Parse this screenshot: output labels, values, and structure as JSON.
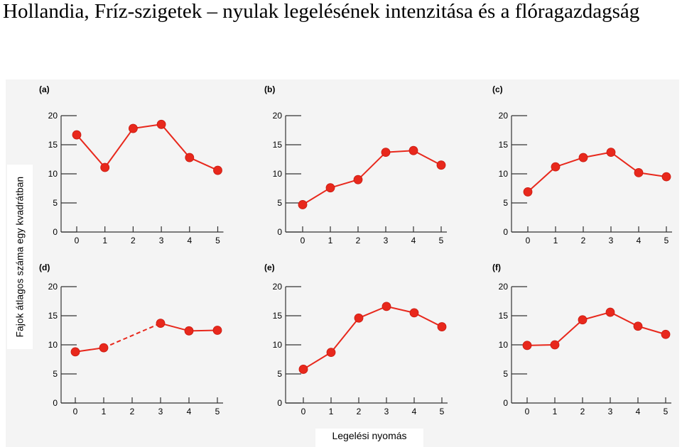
{
  "title": "Hollandia, Fríz-szigetek – nyulak legelésének intenzitása és a flóragazdagság",
  "ylabel": "Fajok átlagos száma egy kvadrátban",
  "xlabel": "Legelési nyomás",
  "colors": {
    "series": "#e8281c",
    "axis": "#333333",
    "panel_bg": "#f4f4f4"
  },
  "chart_data": [
    {
      "type": "line",
      "panel": "(a)",
      "x": [
        0,
        1,
        2,
        3,
        4,
        5
      ],
      "y": [
        16.7,
        11.1,
        17.8,
        18.5,
        12.8,
        10.6
      ],
      "dashed_segments": [],
      "xlim": [
        0,
        5
      ],
      "ylim": [
        0,
        20
      ],
      "yticks": [
        0,
        5,
        10,
        15,
        20
      ],
      "xticks": [
        0,
        1,
        2,
        3,
        4,
        5
      ]
    },
    {
      "type": "line",
      "panel": "(b)",
      "x": [
        0,
        1,
        2,
        3,
        4,
        5
      ],
      "y": [
        4.7,
        7.6,
        9.0,
        13.7,
        14.0,
        11.5
      ],
      "dashed_segments": [],
      "xlim": [
        0,
        5
      ],
      "ylim": [
        0,
        20
      ],
      "yticks": [
        0,
        5,
        10,
        15,
        20
      ],
      "xticks": [
        0,
        1,
        2,
        3,
        4,
        5
      ]
    },
    {
      "type": "line",
      "panel": "(c)",
      "x": [
        0,
        1,
        2,
        3,
        4,
        5
      ],
      "y": [
        6.9,
        11.2,
        12.8,
        13.7,
        10.2,
        9.5
      ],
      "dashed_segments": [],
      "xlim": [
        0,
        5
      ],
      "ylim": [
        0,
        20
      ],
      "yticks": [
        0,
        5,
        10,
        15,
        20
      ],
      "xticks": [
        0,
        1,
        2,
        3,
        4,
        5
      ]
    },
    {
      "type": "line",
      "panel": "(d)",
      "x": [
        0,
        1,
        3,
        4,
        5
      ],
      "y": [
        8.8,
        9.5,
        13.7,
        12.4,
        12.5
      ],
      "dashed_segments": [
        1
      ],
      "xlim": [
        0,
        5
      ],
      "ylim": [
        0,
        20
      ],
      "yticks": [
        0,
        5,
        10,
        15,
        20
      ],
      "xticks": [
        0,
        1,
        2,
        3,
        4,
        5
      ]
    },
    {
      "type": "line",
      "panel": "(e)",
      "x": [
        0,
        1,
        2,
        3,
        4,
        5
      ],
      "y": [
        5.8,
        8.7,
        14.6,
        16.6,
        15.5,
        13.1
      ],
      "dashed_segments": [],
      "xlim": [
        0,
        5
      ],
      "ylim": [
        0,
        20
      ],
      "yticks": [
        0,
        5,
        10,
        15,
        20
      ],
      "xticks": [
        0,
        1,
        2,
        3,
        4,
        5
      ]
    },
    {
      "type": "line",
      "panel": "(f)",
      "x": [
        0,
        1,
        2,
        3,
        4,
        5
      ],
      "y": [
        9.9,
        10.0,
        14.3,
        15.6,
        13.2,
        11.8
      ],
      "dashed_segments": [],
      "xlim": [
        0,
        5
      ],
      "ylim": [
        0,
        20
      ],
      "yticks": [
        0,
        5,
        10,
        15,
        20
      ],
      "xticks": [
        0,
        1,
        2,
        3,
        4,
        5
      ]
    }
  ]
}
